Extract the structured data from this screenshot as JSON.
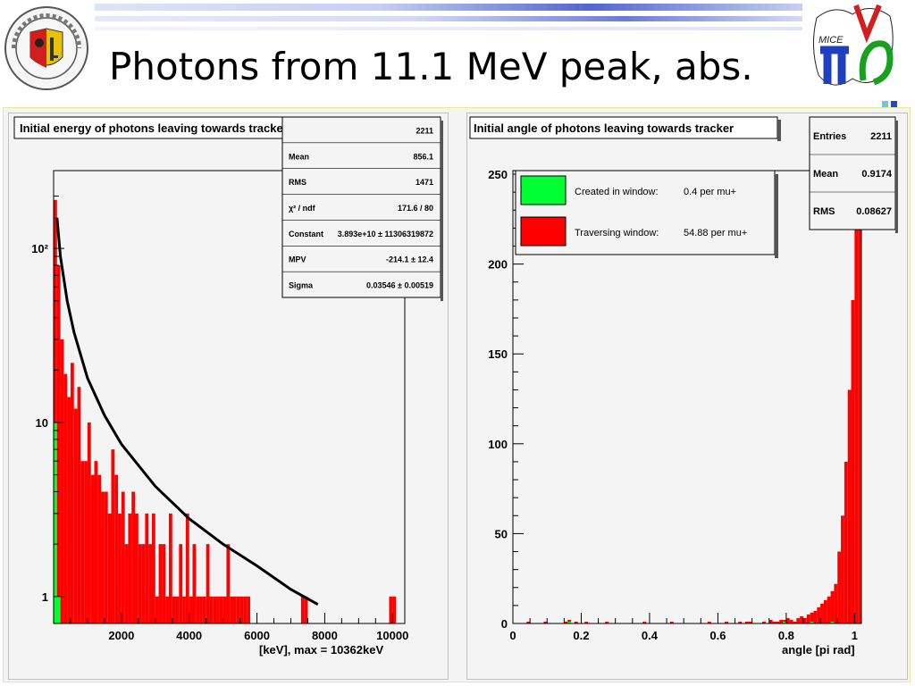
{
  "slide": {
    "title": "Photons from 11.1 MeV peak, abs.",
    "logo_text": "MICE"
  },
  "colors": {
    "histogram_fill": "#ff0000",
    "created_fill": "#00ff33",
    "fit_line": "#000000",
    "header_stripe": "#3f57c9"
  },
  "chart_data": [
    {
      "type": "bar",
      "title": "Initial energy of photons leaving towards tracker",
      "xlabel": "[keV], max =     10362keV",
      "ylabel": "",
      "xlim": [
        0,
        10362
      ],
      "ylim": [
        0.7,
        280
      ],
      "log_y": true,
      "x_ticks": [
        "2000",
        "4000",
        "6000",
        "8000",
        "10000"
      ],
      "y_ticks": [
        "1",
        "10",
        "10²"
      ],
      "stats": [
        {
          "label": "",
          "value": "2211"
        },
        {
          "label": "Mean",
          "value": "856.1"
        },
        {
          "label": "RMS",
          "value": "1471"
        },
        {
          "label": "χ² / ndf",
          "value": "171.6 / 80"
        },
        {
          "label": "Constant",
          "value": "3.893e+10 ± 11306319872"
        },
        {
          "label": "MPV",
          "value": "-214.1 ±  12.4"
        },
        {
          "label": "Sigma",
          "value": "0.03546 ±  0.00519"
        }
      ],
      "series": [
        {
          "name": "",
          "bin_width": 100,
          "values": [
            190,
            80,
            30,
            19,
            14,
            22,
            12,
            16,
            6,
            6,
            10,
            5,
            6,
            5,
            4,
            4,
            3,
            7,
            5,
            3,
            4,
            2,
            3,
            4,
            3,
            2,
            2,
            3,
            2,
            3,
            1,
            2,
            2,
            1,
            3,
            1,
            1,
            2,
            1,
            3,
            1,
            2,
            1,
            1,
            1,
            2,
            1,
            1,
            1,
            1,
            1,
            2,
            1,
            1,
            1,
            1,
            1,
            1,
            0,
            0,
            0,
            0,
            0,
            0,
            0,
            0,
            0,
            0,
            0,
            0,
            0,
            0,
            0,
            1,
            1,
            0,
            0,
            0,
            0,
            0,
            0,
            0,
            0,
            0,
            0,
            0,
            0,
            0,
            0,
            0,
            0,
            0,
            0,
            0,
            0,
            0,
            0,
            0,
            0,
            1,
            1,
            0,
            0,
            0
          ]
        },
        {
          "name": "",
          "bin_width": 100,
          "values": [
            10,
            1,
            0,
            0,
            0,
            0,
            0,
            0,
            0,
            0,
            0,
            0,
            0,
            0,
            0,
            0,
            0,
            0,
            0,
            0,
            0,
            0,
            0,
            0,
            0,
            0,
            0,
            0,
            0,
            0,
            0,
            0,
            0,
            0,
            0,
            0,
            0,
            0,
            0,
            0,
            0,
            0,
            0,
            0,
            0,
            0,
            0,
            0,
            0,
            0,
            0,
            0,
            0,
            0,
            0,
            0,
            0,
            0,
            0,
            0,
            0,
            0,
            0,
            0,
            0,
            0,
            0,
            0,
            0,
            0,
            0,
            0,
            0,
            0,
            0,
            0,
            0,
            0,
            0,
            0,
            0,
            0,
            0,
            0,
            0,
            0,
            0,
            0,
            0,
            0,
            0,
            0,
            0,
            0,
            0,
            0,
            0,
            0,
            0,
            0,
            0,
            0,
            0,
            0
          ]
        }
      ],
      "fit_curve": {
        "x": [
          100,
          200,
          400,
          600,
          1000,
          1500,
          2000,
          3000,
          4000,
          5000,
          6000,
          7000,
          7800
        ],
        "y": [
          150,
          90,
          50,
          33,
          18,
          11,
          7.5,
          4.3,
          2.8,
          2,
          1.5,
          1.1,
          0.9
        ]
      }
    },
    {
      "type": "bar",
      "title": "Initial angle of photons leaving towards tracker",
      "xlabel": "angle [pi rad]",
      "ylabel": "",
      "xlim": [
        0,
        1.02
      ],
      "ylim": [
        0,
        252
      ],
      "x_ticks": [
        "0",
        "0.2",
        "0.4",
        "0.6",
        "0.8",
        "1"
      ],
      "y_ticks": [
        "0",
        "50",
        "100",
        "150",
        "200",
        "250"
      ],
      "stats": [
        {
          "label": "Entries",
          "value": "2211"
        },
        {
          "label": "Mean",
          "value": "0.9174"
        },
        {
          "label": "RMS",
          "value": "0.08627"
        }
      ],
      "legend": [
        {
          "label": "Created in window:",
          "value": "0.4 per mu+",
          "color": "#00ff33"
        },
        {
          "label": "Traversing window:",
          "value": "54.88 per mu+",
          "color": "#ff0000"
        }
      ],
      "series": [
        {
          "name": "Traversing window",
          "x_start": 0.0,
          "bin_width": 0.01,
          "values": [
            0,
            0,
            0,
            0,
            1,
            0,
            0,
            0,
            0,
            1,
            0,
            0,
            0,
            0,
            0,
            1,
            2,
            0,
            1,
            0,
            0,
            1,
            0,
            0,
            0,
            0,
            0,
            1,
            0,
            0,
            0,
            0,
            0,
            0,
            0,
            0,
            0,
            0,
            1,
            0,
            0,
            0,
            0,
            0,
            0,
            0,
            1,
            0,
            0,
            0,
            0,
            0,
            0,
            0,
            0,
            0,
            0,
            1,
            0,
            0,
            0,
            0,
            1,
            0,
            0,
            0,
            1,
            0,
            1,
            1,
            0,
            0,
            0,
            1,
            0,
            2,
            1,
            1,
            2,
            2,
            3,
            2,
            1,
            3,
            4,
            3,
            5,
            6,
            7,
            9,
            11,
            13,
            15,
            18,
            22,
            40,
            60,
            90,
            130,
            180,
            220,
            260
          ]
        },
        {
          "name": "Created in window",
          "x_start": 0.0,
          "bin_width": 0.01,
          "values": [
            0,
            0,
            0,
            0,
            0,
            0,
            0,
            0,
            0,
            0,
            0,
            0,
            0,
            0,
            0,
            0,
            1,
            0,
            0,
            0,
            0,
            0,
            0,
            0,
            0,
            0,
            0,
            0,
            0,
            0,
            0,
            0,
            0,
            0,
            0,
            0,
            0,
            0,
            0,
            0,
            0,
            0,
            0,
            0,
            0,
            0,
            0,
            0,
            0,
            0,
            0,
            0,
            0,
            0,
            0,
            0,
            0,
            0,
            0,
            0,
            0,
            0,
            0,
            0,
            0,
            0,
            0,
            0,
            0,
            0,
            0,
            0,
            0,
            0,
            0,
            0,
            0,
            0,
            0,
            1,
            0,
            0,
            0,
            0,
            0,
            0,
            0,
            1,
            0,
            0,
            0,
            0,
            0,
            1,
            0,
            0,
            0,
            0,
            0,
            0,
            0,
            0
          ]
        }
      ]
    }
  ]
}
